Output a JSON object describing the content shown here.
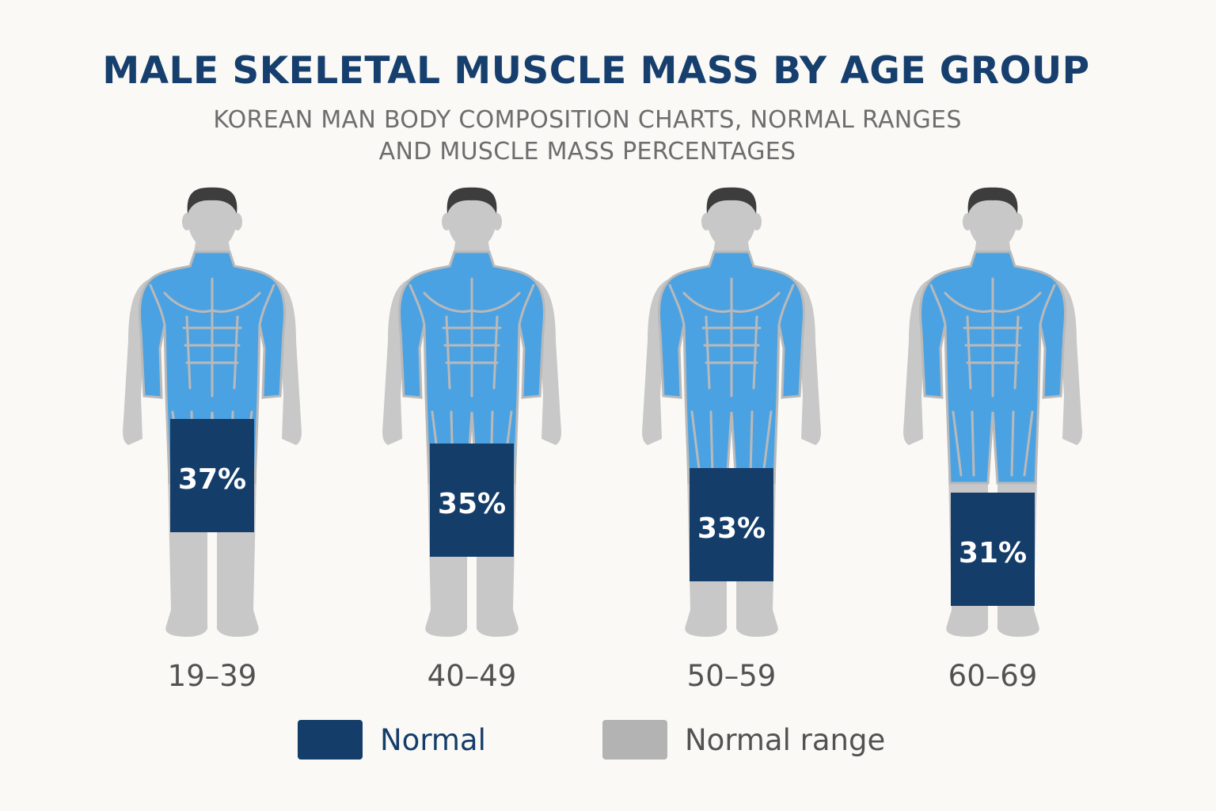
{
  "title": "MALE SKELETAL MUSCLE MASS BY AGE GROUP",
  "subtitle_line1": "KOREAN MAN BODY COMPOSITION CHARTS, NORMAL RANGES",
  "subtitle_line2": "AND MUSCLE MASS PERCENTAGES",
  "colors": {
    "normal": "#143d69",
    "normal_range": "#b3b3b3",
    "muscle": "#4ba2e2",
    "muscle_line": "#b9b9b9",
    "head": "#c8c8c8",
    "hair": "#3d3d3d",
    "label": "#525252"
  },
  "legend": {
    "normal": "Normal",
    "normal_range": "Normal range"
  },
  "chart_data": {
    "type": "bar",
    "title": "MALE SKELETAL MUSCLE MASS BY AGE GROUP",
    "categories": [
      "19–39",
      "40–49",
      "50–59",
      "60–69"
    ],
    "series": [
      {
        "name": "Normal",
        "values": [
          37,
          35,
          33,
          31
        ],
        "labels": [
          "37%",
          "35%",
          "33%",
          "31%"
        ]
      }
    ],
    "unit": "%",
    "legend_position": "bottom"
  }
}
